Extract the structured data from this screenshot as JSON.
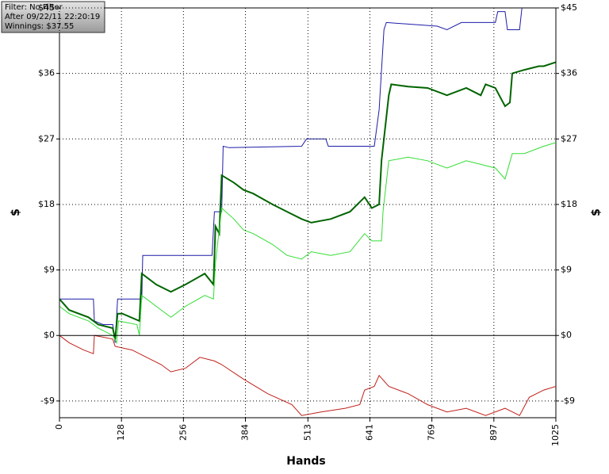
{
  "chart_data": {
    "type": "line",
    "annotations": [
      "Filter: No Filter",
      "After 09/22/11 22:20:19",
      "Winnings: $37.55"
    ],
    "x_label": "Hands",
    "y_label": "$",
    "xlim": [
      0,
      1025
    ],
    "xticks": [
      0,
      128,
      256,
      384,
      513,
      641,
      769,
      897,
      1025
    ],
    "ylim": [
      -11.3,
      45
    ],
    "yticks": [
      {
        "value": -9,
        "label": "-$9"
      },
      {
        "value": 0,
        "label": "$0"
      },
      {
        "value": 9,
        "label": "$9"
      },
      {
        "value": 18,
        "label": "$18"
      },
      {
        "value": 27,
        "label": "$27"
      },
      {
        "value": 36,
        "label": "$36"
      },
      {
        "value": 45,
        "label": "$45"
      }
    ],
    "grid": true,
    "series": [
      {
        "color": "#1c1ca8",
        "x": [
          0,
          70,
          72,
          90,
          110,
          115,
          120,
          170,
          172,
          315,
          320,
          335,
          338,
          350,
          500,
          510,
          550,
          555,
          650,
          660,
          670,
          675,
          780,
          800,
          830,
          900,
          905,
          920,
          925,
          950,
          955
        ],
        "values": [
          5,
          5,
          2,
          1.5,
          1.5,
          -1,
          5,
          5,
          11,
          11,
          17,
          17,
          26,
          25.8,
          26,
          27,
          27,
          26,
          26,
          31,
          42,
          43,
          42.5,
          42,
          43,
          43,
          44.5,
          44.5,
          42,
          42,
          45
        ]
      },
      {
        "color": "#006400",
        "x": [
          0,
          20,
          60,
          80,
          110,
          115,
          120,
          130,
          165,
          170,
          200,
          230,
          260,
          300,
          318,
          322,
          330,
          335,
          360,
          380,
          400,
          440,
          470,
          500,
          520,
          560,
          600,
          630,
          645,
          660,
          665,
          680,
          685,
          720,
          760,
          800,
          840,
          870,
          880,
          900,
          920,
          930,
          935,
          960,
          990,
          1000,
          1025
        ],
        "values": [
          5,
          3.5,
          2.5,
          1.5,
          1,
          -0.5,
          3,
          3,
          2,
          8.5,
          7,
          6,
          7,
          8.5,
          7,
          15,
          14,
          22,
          21,
          20,
          19.5,
          18,
          17,
          16,
          15.5,
          16,
          17,
          19,
          17.5,
          18,
          24,
          33,
          34.5,
          34.2,
          34,
          33,
          34,
          33,
          34.5,
          34,
          31.5,
          32,
          36,
          36.5,
          37,
          37,
          37.55
        ]
      },
      {
        "color": "#33dd33",
        "x": [
          0,
          20,
          60,
          80,
          110,
          118,
          122,
          160,
          165,
          170,
          200,
          230,
          260,
          300,
          318,
          322,
          335,
          360,
          380,
          400,
          440,
          470,
          500,
          520,
          560,
          600,
          630,
          645,
          665,
          668,
          680,
          720,
          760,
          800,
          840,
          870,
          900,
          920,
          935,
          960,
          1000,
          1025
        ],
        "values": [
          4,
          3,
          2,
          1,
          0,
          -1,
          2,
          1.5,
          0,
          5.5,
          4,
          2.5,
          4,
          5.5,
          5,
          10,
          17.5,
          16,
          14.5,
          14,
          12.5,
          11,
          10.5,
          11.5,
          11,
          11.5,
          14,
          13,
          13,
          17,
          24,
          24.5,
          24,
          23,
          24,
          23.5,
          23,
          21.5,
          25,
          25,
          26,
          26.5
        ]
      },
      {
        "color": "#c0201a",
        "x": [
          0,
          20,
          50,
          70,
          72,
          110,
          115,
          150,
          180,
          210,
          230,
          260,
          290,
          320,
          335,
          380,
          430,
          480,
          500,
          540,
          590,
          620,
          630,
          650,
          660,
          680,
          720,
          760,
          800,
          840,
          880,
          920,
          950,
          970,
          1000,
          1025
        ],
        "values": [
          0,
          -1,
          -2,
          -2.5,
          0,
          -0.5,
          -1.5,
          -2,
          -3,
          -4,
          -5,
          -4.5,
          -3,
          -3.5,
          -4,
          -6,
          -8,
          -9.5,
          -11,
          -10.5,
          -10,
          -9.5,
          -7.5,
          -7,
          -5.5,
          -7,
          -8,
          -9.5,
          -10.5,
          -10,
          -11,
          -10,
          -11,
          -8.5,
          -7.5,
          -7
        ]
      }
    ]
  }
}
